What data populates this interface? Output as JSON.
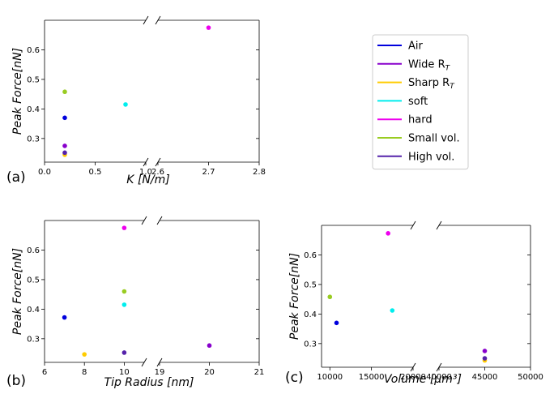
{
  "chart_data": [
    {
      "type": "scatter",
      "panel_label": "(a)",
      "ylabel": "Peak Force[nN]",
      "xlabel": {
        "main": "K",
        "unit": "[N/m]"
      },
      "ylim": [
        0.22,
        0.7
      ],
      "yticks": [
        0.3,
        0.4,
        0.5,
        0.6
      ],
      "broken_x": true,
      "x_segments": [
        {
          "range": [
            0.0,
            1.0
          ],
          "ticks": [
            0.0,
            0.5,
            1.0
          ],
          "tick_labels": [
            "0.0",
            "0.5",
            "1.0"
          ]
        },
        {
          "range": [
            2.6,
            2.8
          ],
          "ticks": [
            2.6,
            2.7,
            2.8
          ],
          "tick_labels": [
            "2.6",
            "2.7",
            "2.8"
          ]
        }
      ],
      "points": [
        {
          "series": "Air",
          "x": 0.2,
          "y": 0.37
        },
        {
          "series": "Wide",
          "x": 0.2,
          "y": 0.275
        },
        {
          "series": "Sharp",
          "x": 0.2,
          "y": 0.245
        },
        {
          "series": "soft",
          "x": 0.8,
          "y": 0.415
        },
        {
          "series": "hard",
          "x": 2.7,
          "y": 0.675
        },
        {
          "series": "Small vol.",
          "x": 0.2,
          "y": 0.458
        },
        {
          "series": "High vol.",
          "x": 0.2,
          "y": 0.252
        }
      ]
    },
    {
      "type": "scatter",
      "panel_label": "(b)",
      "ylabel": "Peak Force[nN]",
      "xlabel": {
        "main": "Tip Radius",
        "unit": "[nm]"
      },
      "ylim": [
        0.22,
        0.7
      ],
      "yticks": [
        0.3,
        0.4,
        0.5,
        0.6
      ],
      "broken_x": true,
      "x_segments": [
        {
          "range": [
            6,
            11
          ],
          "ticks": [
            6,
            8,
            10
          ],
          "tick_labels": [
            "6",
            "8",
            "10"
          ]
        },
        {
          "range": [
            19,
            21
          ],
          "ticks": [
            19,
            20,
            21
          ],
          "tick_labels": [
            "19",
            "20",
            "21"
          ]
        }
      ],
      "points": [
        {
          "series": "Air",
          "x": 7,
          "y": 0.372
        },
        {
          "series": "Wide",
          "x": 20,
          "y": 0.277
        },
        {
          "series": "Sharp",
          "x": 8,
          "y": 0.247
        },
        {
          "series": "soft",
          "x": 10,
          "y": 0.415
        },
        {
          "series": "hard",
          "x": 10,
          "y": 0.675
        },
        {
          "series": "Small vol.",
          "x": 10,
          "y": 0.46
        },
        {
          "series": "High vol.",
          "x": 10,
          "y": 0.253
        }
      ]
    },
    {
      "type": "scatter",
      "panel_label": "(c)",
      "ylabel": "Peak Force[nN]",
      "xlabel": {
        "main": "Volume",
        "unit": "[μm³]"
      },
      "ylim": [
        0.22,
        0.7
      ],
      "yticks": [
        0.3,
        0.4,
        0.5,
        0.6
      ],
      "broken_x": true,
      "x_segments": [
        {
          "range": [
            9000,
            20000
          ],
          "ticks": [
            10000,
            15000,
            20000
          ],
          "tick_labels": [
            "10000",
            "15000",
            "20000"
          ]
        },
        {
          "range": [
            40000,
            50000
          ],
          "ticks": [
            40000,
            45000,
            50000
          ],
          "tick_labels": [
            "40000",
            "45000",
            "50000"
          ]
        }
      ],
      "points": [
        {
          "series": "Air",
          "x": 10800,
          "y": 0.37
        },
        {
          "series": "Wide",
          "x": 45000,
          "y": 0.275
        },
        {
          "series": "Sharp",
          "x": 45000,
          "y": 0.243
        },
        {
          "series": "soft",
          "x": 17500,
          "y": 0.412
        },
        {
          "series": "hard",
          "x": 17000,
          "y": 0.673
        },
        {
          "series": "Small vol.",
          "x": 10000,
          "y": 0.458
        },
        {
          "series": "High vol.",
          "x": 45000,
          "y": 0.25
        }
      ]
    }
  ],
  "legend": {
    "placement": "right",
    "entries": [
      {
        "key": "Air",
        "label": "Air",
        "sub": "",
        "color": "#0000dd"
      },
      {
        "key": "Wide",
        "label": "Wide R",
        "sub": "T",
        "color": "#8800cc"
      },
      {
        "key": "Sharp",
        "label": "Sharp R",
        "sub": "T",
        "color": "#ffcc00"
      },
      {
        "key": "soft",
        "label": "soft",
        "sub": "",
        "color": "#00eeee"
      },
      {
        "key": "hard",
        "label": "hard",
        "sub": "",
        "color": "#ee00ee"
      },
      {
        "key": "Small vol.",
        "label": "Small vol.",
        "sub": "",
        "color": "#99cc22"
      },
      {
        "key": "High vol.",
        "label": "High vol.",
        "sub": "",
        "color": "#5522aa"
      }
    ]
  }
}
